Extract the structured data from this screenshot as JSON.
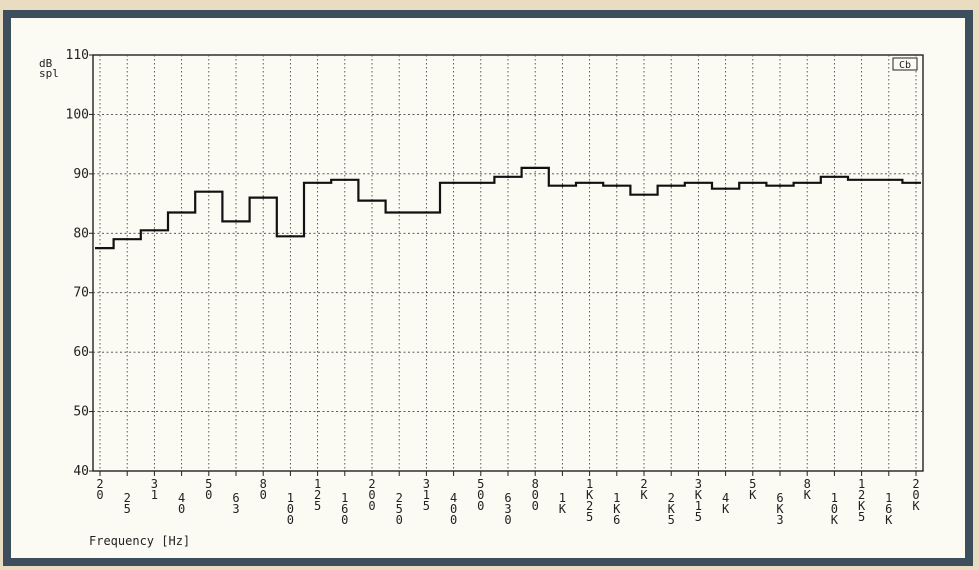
{
  "chart_data": {
    "type": "line",
    "step": true,
    "title": "",
    "ylabel_lines": [
      "dB",
      "spl"
    ],
    "xlabel": "Frequency [Hz]",
    "badge": "Cb",
    "ylim": [
      40,
      110
    ],
    "yticks": [
      40,
      50,
      60,
      70,
      80,
      90,
      100,
      110
    ],
    "grid": true,
    "x_scale": "log (1/3 octave bands)",
    "categories": [
      "20",
      "25",
      "31",
      "40",
      "50",
      "63",
      "80",
      "100",
      "125",
      "160",
      "200",
      "250",
      "315",
      "400",
      "500",
      "630",
      "800",
      "1K",
      "1K25",
      "1K6",
      "2K",
      "2K5",
      "3K15",
      "4K",
      "5K",
      "6K3",
      "8K",
      "10K",
      "12K5",
      "16K",
      "20K"
    ],
    "category_labels": [
      "2\n0",
      "2\n5",
      "3\n1",
      "4\n0",
      "5\n0",
      "6\n3",
      "8\n0",
      "1\n0\n0",
      "1\n2\n5",
      "1\n6\n0",
      "2\n0\n0",
      "2\n5\n0",
      "3\n1\n5",
      "4\n0\n0",
      "5\n0\n0",
      "6\n3\n0",
      "8\n0\n0",
      "1\nK",
      "1\nK\n2\n5",
      "1\nK\n6",
      "2\nK",
      "2\nK\n5",
      "3\nK\n1\n5",
      "4\nK",
      "5\nK",
      "6\nK\n3",
      "8\nK",
      "1\n0\nK",
      "1\n2\nK\n5",
      "1\n6\nK",
      "2\n0\nK"
    ],
    "series": [
      {
        "values": [
          77.5,
          79,
          80.5,
          83.5,
          87,
          82,
          86,
          79.5,
          88.5,
          89,
          85.5,
          83.5,
          83.5,
          88.5,
          88.5,
          89.5,
          91,
          88,
          88.5,
          88,
          86.5,
          88,
          88.5,
          87.5,
          88.5,
          88,
          88.5,
          89.5,
          89,
          89,
          88.5
        ]
      }
    ]
  }
}
